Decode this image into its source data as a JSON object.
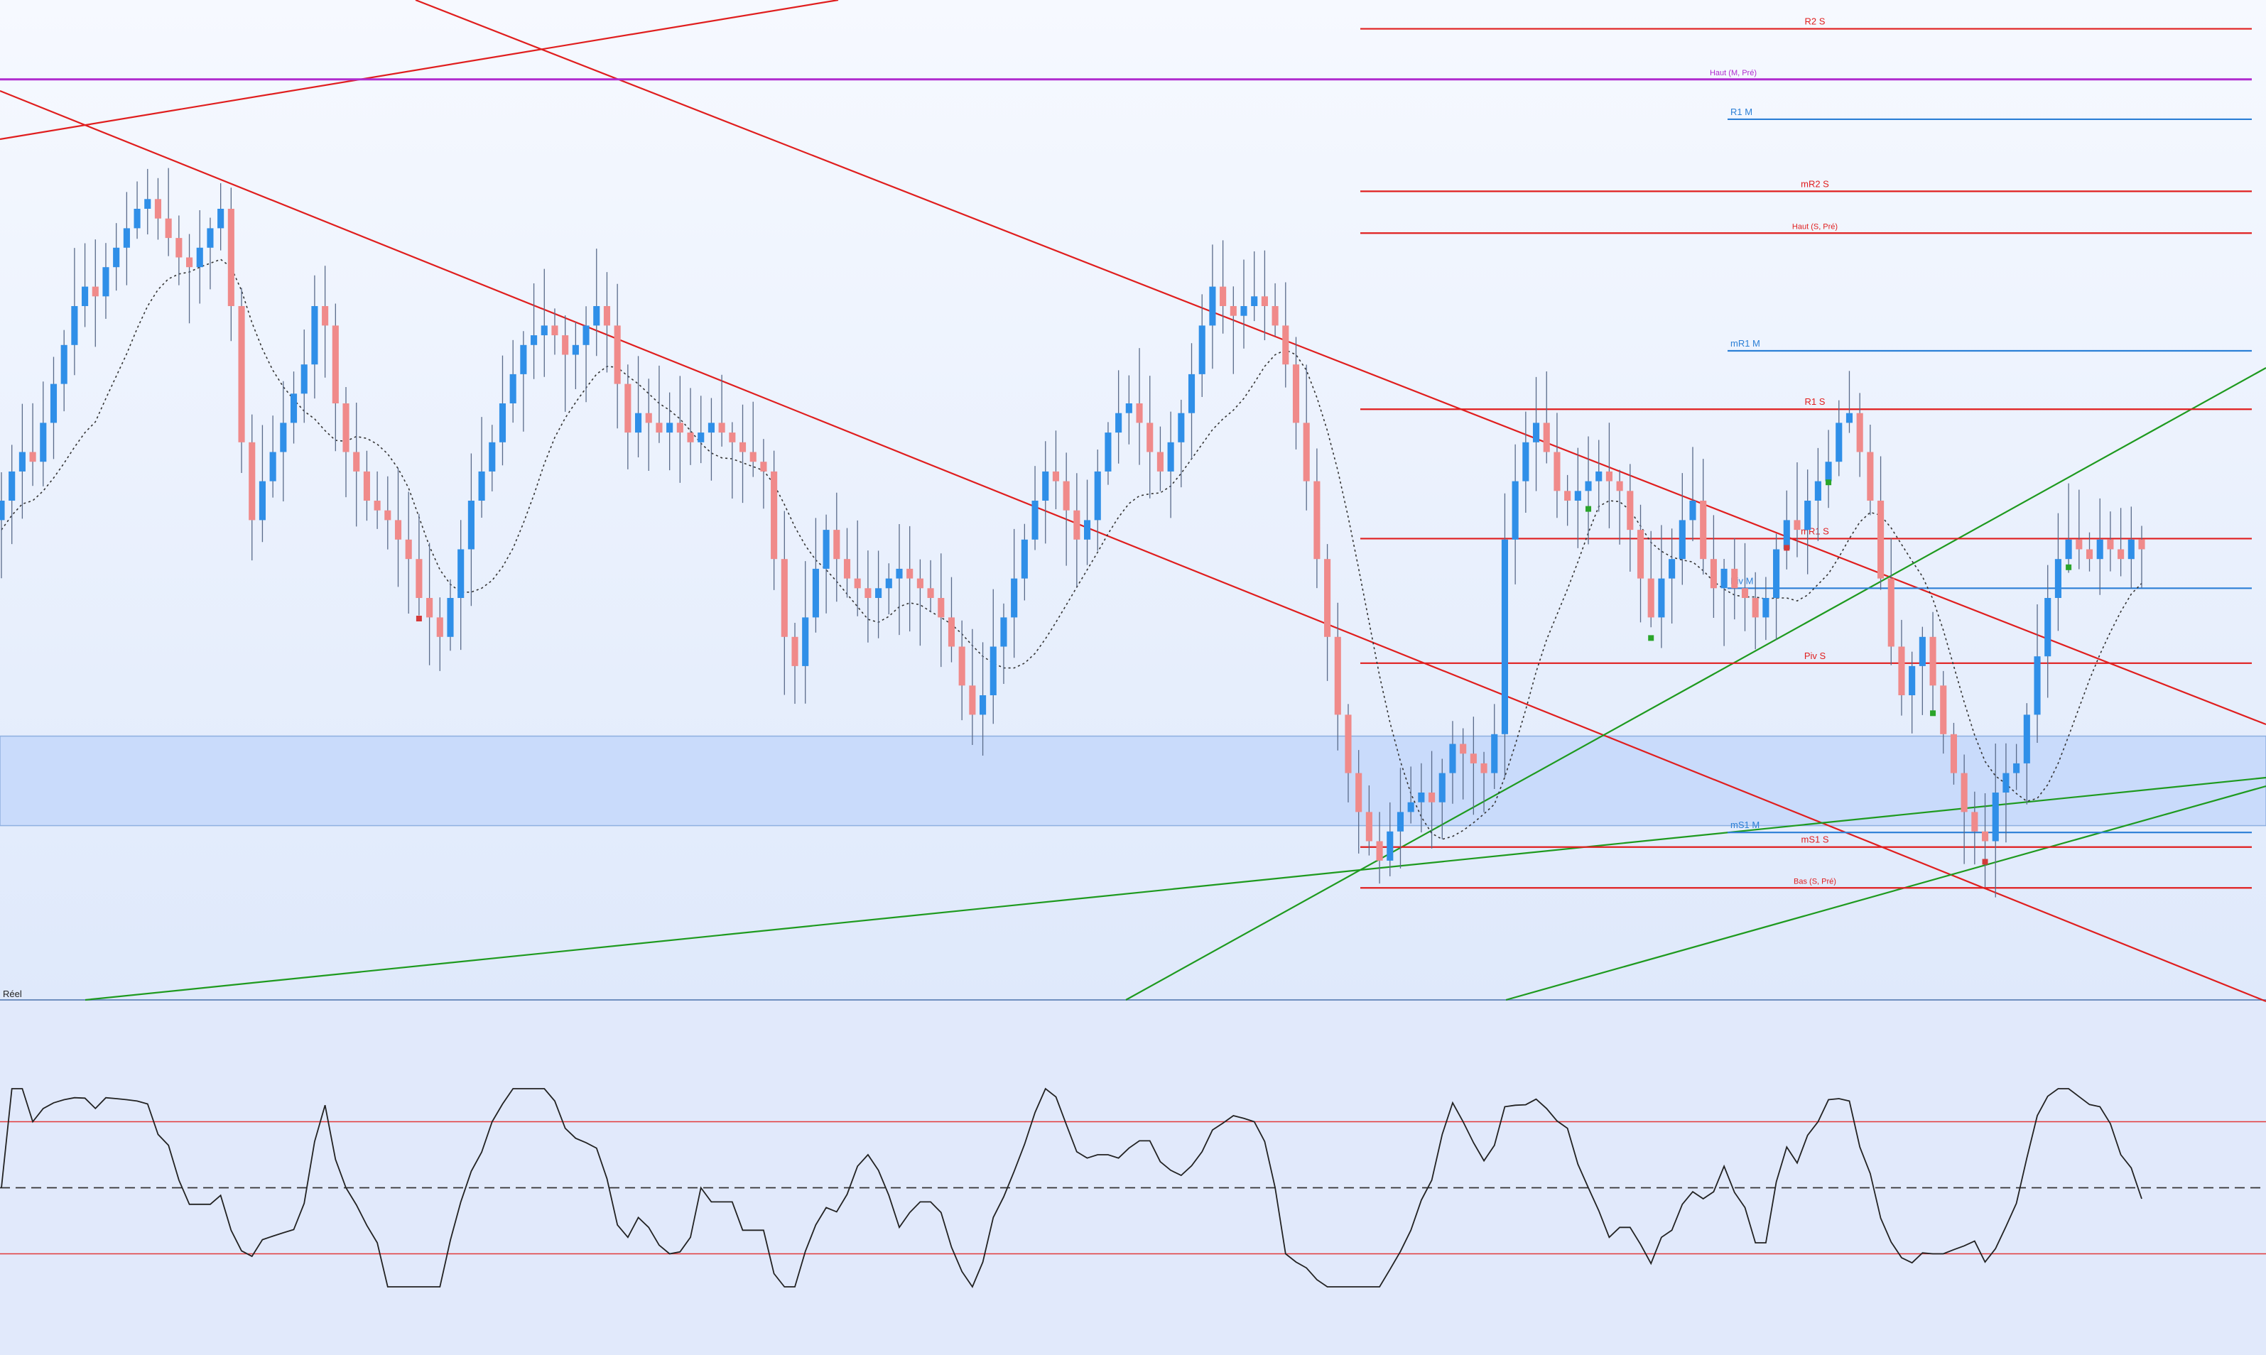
{
  "chart_data": {
    "type": "candlestick",
    "panes": [
      "price",
      "oscillator"
    ],
    "grid": false,
    "colors": {
      "up": "#2f8fe8",
      "down": "#f08a8a",
      "wick": "#5a6b8a",
      "red_level": "#e01e1e",
      "blue_level": "#2b7fd6",
      "purple_level": "#b02ccf",
      "green_trend": "#1e9a1e",
      "red_trend": "#e01e1e",
      "zone": "#c9dbfb",
      "ma": "#333333",
      "osc_line": "#222222",
      "osc_bounds": "#e23a3a"
    },
    "price_range": [
      0,
      1
    ],
    "levels": [
      {
        "label": "R2 S",
        "color": "red",
        "value": 0.985
      },
      {
        "label": "Haut (M, Pré)",
        "color": "purple",
        "value": 0.933
      },
      {
        "label": "R1 M",
        "color": "blue",
        "value": 0.892
      },
      {
        "label": "mR2 S",
        "color": "red",
        "value": 0.818
      },
      {
        "label": "Haut (S, Pré)",
        "color": "red",
        "value": 0.775
      },
      {
        "label": "mR1 M",
        "color": "blue",
        "value": 0.654
      },
      {
        "label": "R1 S",
        "color": "red",
        "value": 0.594
      },
      {
        "label": "mR1 S",
        "color": "red",
        "value": 0.461
      },
      {
        "label": "Piv M",
        "color": "blue",
        "value": 0.41
      },
      {
        "label": "Piv S",
        "color": "red",
        "value": 0.333
      },
      {
        "label": "mS1 M",
        "color": "blue",
        "value": 0.159
      },
      {
        "label": "mS1 S",
        "color": "red",
        "value": 0.144
      },
      {
        "label": "Bas (S, Pré)",
        "color": "red",
        "value": 0.102
      }
    ],
    "zone": {
      "top": 0.258,
      "bottom": 0.166
    },
    "pane_label": "Réel",
    "candles_close": [
      0.5,
      0.53,
      0.55,
      0.54,
      0.58,
      0.62,
      0.66,
      0.7,
      0.72,
      0.71,
      0.74,
      0.76,
      0.78,
      0.8,
      0.81,
      0.79,
      0.77,
      0.75,
      0.74,
      0.76,
      0.78,
      0.8,
      0.7,
      0.56,
      0.48,
      0.52,
      0.55,
      0.58,
      0.61,
      0.64,
      0.7,
      0.68,
      0.6,
      0.55,
      0.53,
      0.5,
      0.49,
      0.48,
      0.46,
      0.44,
      0.4,
      0.38,
      0.36,
      0.4,
      0.45,
      0.5,
      0.53,
      0.56,
      0.6,
      0.63,
      0.66,
      0.67,
      0.68,
      0.67,
      0.65,
      0.66,
      0.68,
      0.7,
      0.68,
      0.62,
      0.57,
      0.59,
      0.58,
      0.57,
      0.58,
      0.57,
      0.56,
      0.57,
      0.58,
      0.57,
      0.56,
      0.55,
      0.54,
      0.53,
      0.44,
      0.36,
      0.33,
      0.38,
      0.43,
      0.47,
      0.44,
      0.42,
      0.41,
      0.4,
      0.41,
      0.42,
      0.43,
      0.42,
      0.41,
      0.4,
      0.38,
      0.35,
      0.31,
      0.28,
      0.3,
      0.35,
      0.38,
      0.42,
      0.46,
      0.5,
      0.53,
      0.52,
      0.49,
      0.46,
      0.48,
      0.53,
      0.57,
      0.59,
      0.6,
      0.58,
      0.55,
      0.53,
      0.56,
      0.59,
      0.63,
      0.68,
      0.72,
      0.7,
      0.69,
      0.7,
      0.71,
      0.7,
      0.68,
      0.64,
      0.58,
      0.52,
      0.44,
      0.36,
      0.28,
      0.22,
      0.18,
      0.15,
      0.13,
      0.16,
      0.18,
      0.19,
      0.2,
      0.19,
      0.22,
      0.25,
      0.24,
      0.23,
      0.22,
      0.26,
      0.46,
      0.52,
      0.56,
      0.58,
      0.55,
      0.51,
      0.5,
      0.51,
      0.52,
      0.53,
      0.52,
      0.51,
      0.47,
      0.42,
      0.38,
      0.42,
      0.44,
      0.48,
      0.5,
      0.44,
      0.41,
      0.43,
      0.41,
      0.4,
      0.38,
      0.4,
      0.45,
      0.48,
      0.47,
      0.5,
      0.52,
      0.54,
      0.58,
      0.59,
      0.55,
      0.5,
      0.42,
      0.35,
      0.3,
      0.33,
      0.36,
      0.31,
      0.26,
      0.22,
      0.18,
      0.16,
      0.15,
      0.2,
      0.22,
      0.23,
      0.28,
      0.34,
      0.4,
      0.44,
      0.46,
      0.45,
      0.44,
      0.46,
      0.45,
      0.44,
      0.46,
      0.45
    ],
    "rsi_bounds": [
      70,
      30
    ],
    "rsi_mid": 50
  }
}
